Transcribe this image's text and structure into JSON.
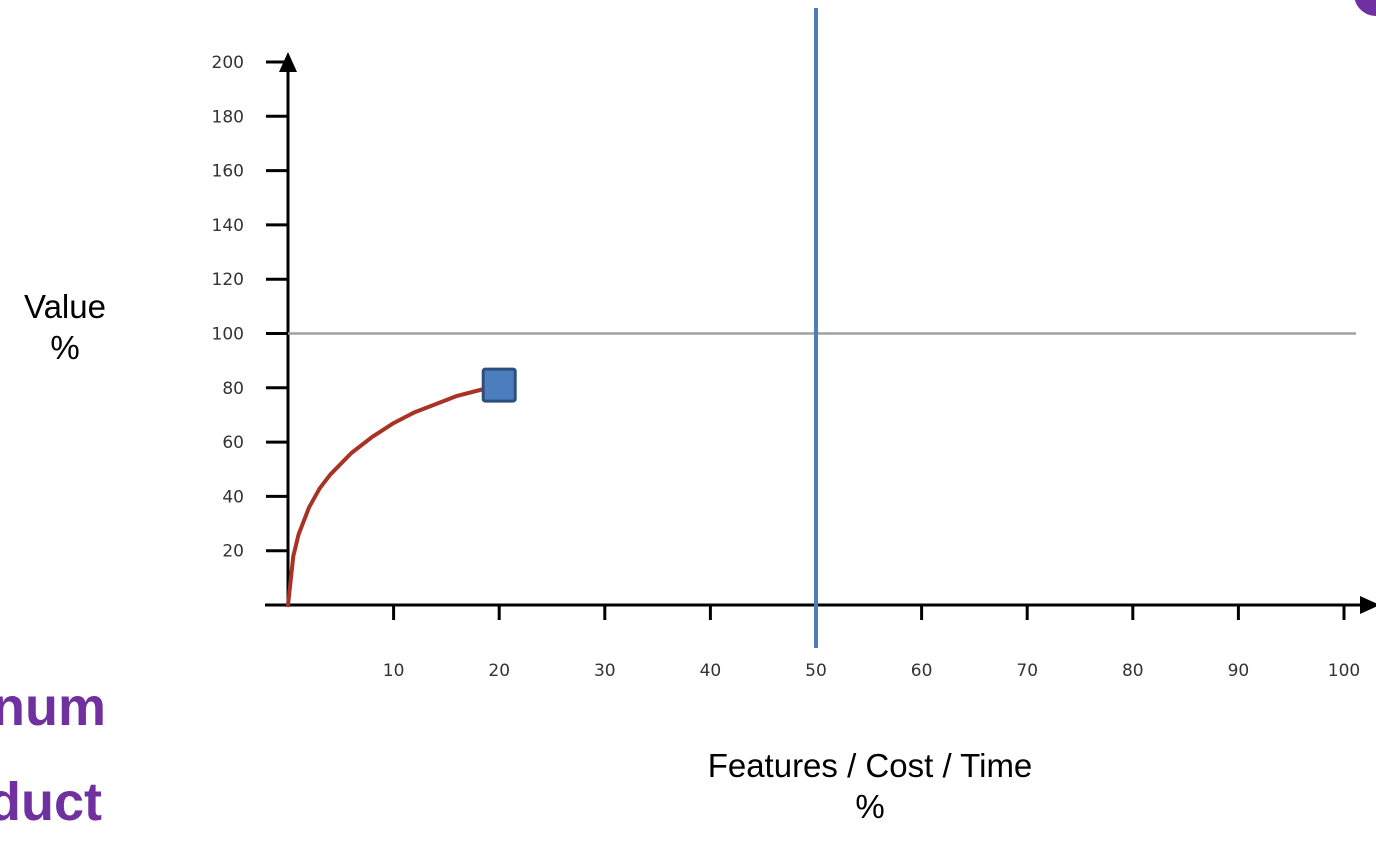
{
  "slide": {
    "ylabel_line1": "Value",
    "ylabel_line2": "%",
    "xlabel_line1": "Features / Cost / Time",
    "xlabel_line2": "%",
    "partial_text_1": "num",
    "partial_text_2": "duct",
    "accent_color": "#7030a0"
  },
  "chart_data": {
    "type": "line",
    "x_ticks": [
      10,
      20,
      30,
      40,
      50,
      60,
      70,
      80,
      90,
      100
    ],
    "y_ticks": [
      20,
      40,
      60,
      80,
      100,
      120,
      140,
      160,
      180,
      200
    ],
    "xlim": [
      0,
      100
    ],
    "ylim": [
      0,
      200
    ],
    "series": [
      {
        "color": "#a93226",
        "x": [
          0,
          0.5,
          1,
          2,
          3,
          4,
          6,
          8,
          10,
          12,
          14,
          16,
          18,
          20
        ],
        "y": [
          0,
          18,
          26,
          36,
          43,
          48,
          56,
          62,
          67,
          71,
          74,
          77,
          79,
          81
        ]
      }
    ],
    "marker": {
      "x": 20,
      "y": 81,
      "shape": "square",
      "color": "#4a7ebf"
    },
    "reference_lines": [
      {
        "orientation": "horizontal",
        "value": 100,
        "color": "#a0a0a0"
      },
      {
        "orientation": "vertical",
        "value": 50,
        "color": "#4a7ebf"
      }
    ],
    "grid": false
  }
}
